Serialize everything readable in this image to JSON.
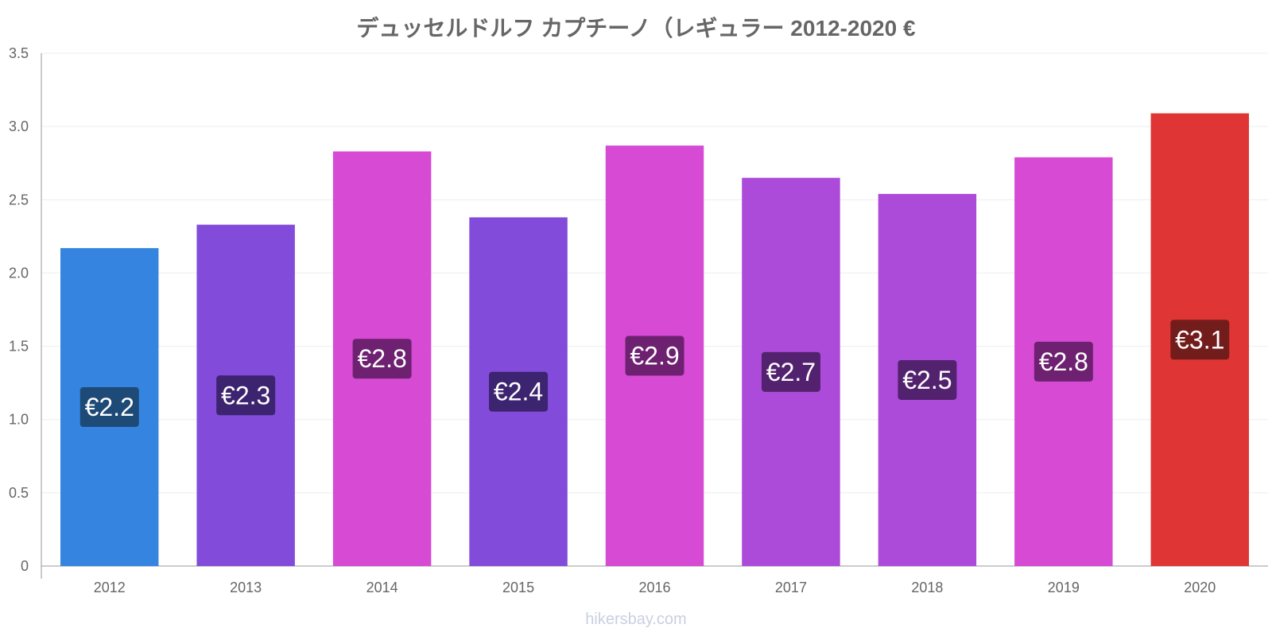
{
  "chart_data": {
    "type": "bar",
    "title": "デュッセルドルフ カプチーノ（レギュラー 2012-2020 €",
    "xlabel": "",
    "ylabel": "",
    "categories": [
      "2012",
      "2013",
      "2014",
      "2015",
      "2016",
      "2017",
      "2018",
      "2019",
      "2020"
    ],
    "values": [
      2.17,
      2.33,
      2.83,
      2.38,
      2.87,
      2.65,
      2.54,
      2.79,
      3.09
    ],
    "value_labels": [
      "€2.2",
      "€2.3",
      "€2.8",
      "€2.4",
      "€2.9",
      "€2.7",
      "€2.5",
      "€2.8",
      "€3.1"
    ],
    "bar_colors": [
      "#3584e0",
      "#834bd9",
      "#d64ad4",
      "#834bd9",
      "#d64ad4",
      "#ac4ad9",
      "#ac4ad9",
      "#d64ad4",
      "#e03535"
    ],
    "label_colors": [
      "#1e4a78",
      "#3c2470",
      "#6e2170",
      "#3c2470",
      "#6e2170",
      "#53226f",
      "#53226f",
      "#6e2170",
      "#731c1c"
    ],
    "ylim": [
      0,
      3.5
    ],
    "yticks": [
      0,
      0.5,
      1.0,
      1.5,
      2.0,
      2.5,
      3.0,
      3.5
    ],
    "ytick_labels": [
      "0",
      "0.5",
      "1.0",
      "1.5",
      "2.0",
      "2.5",
      "3.0",
      "3.5"
    ],
    "grid": true,
    "legend": "none"
  },
  "watermark": "hikersbay.com"
}
